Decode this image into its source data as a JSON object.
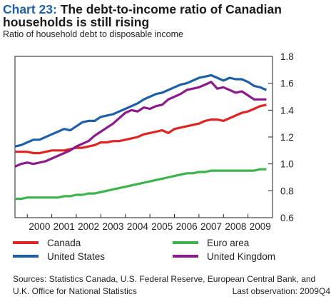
{
  "header": {
    "title_number": "Chart 23:",
    "title_text": "The debt-to-income ratio of Canadian households is still rising",
    "subtitle": "Ratio of household debt to disposable income"
  },
  "footer": {
    "sources": "Sources: Statistics Canada, U.S. Federal Reserve, European Central Bank, and U.K. Office for National Statistics",
    "last_observation": "Last observation: 2009Q4"
  },
  "chart_data": {
    "type": "line",
    "title": "The debt-to-income ratio of Canadian households is still rising",
    "subtitle": "Ratio of household debt to disposable income",
    "xlabel": "",
    "ylabel": "",
    "x_tick_labels": [
      "2000",
      "2001",
      "2002",
      "2003",
      "2004",
      "2005",
      "2006",
      "2007",
      "2008",
      "2009"
    ],
    "y_tick_labels": [
      "0.6",
      "0.8",
      "1.0",
      "1.2",
      "1.4",
      "1.6",
      "1.8"
    ],
    "ylim": [
      0.6,
      1.8
    ],
    "xlim": [
      1999.5,
      2010.0
    ],
    "y_axis_side": "right",
    "grid": false,
    "legend_position": "bottom",
    "series": [
      {
        "name": "Canada",
        "color": "#e02424",
        "x": [
          1999.5,
          1999.75,
          2000.0,
          2000.25,
          2000.5,
          2000.75,
          2001.0,
          2001.25,
          2001.5,
          2001.75,
          2002.0,
          2002.25,
          2002.5,
          2002.75,
          2003.0,
          2003.25,
          2003.5,
          2003.75,
          2004.0,
          2004.25,
          2004.5,
          2004.75,
          2005.0,
          2005.25,
          2005.5,
          2005.75,
          2006.0,
          2006.25,
          2006.5,
          2006.75,
          2007.0,
          2007.25,
          2007.5,
          2007.75,
          2008.0,
          2008.25,
          2008.5,
          2008.75,
          2009.0,
          2009.25,
          2009.5,
          2009.75
        ],
        "y": [
          1.09,
          1.09,
          1.09,
          1.08,
          1.08,
          1.09,
          1.1,
          1.1,
          1.1,
          1.11,
          1.12,
          1.12,
          1.13,
          1.14,
          1.16,
          1.16,
          1.17,
          1.17,
          1.18,
          1.19,
          1.2,
          1.22,
          1.23,
          1.24,
          1.25,
          1.23,
          1.26,
          1.27,
          1.28,
          1.29,
          1.3,
          1.32,
          1.33,
          1.33,
          1.32,
          1.34,
          1.36,
          1.38,
          1.39,
          1.41,
          1.43,
          1.44
        ]
      },
      {
        "name": "United States",
        "color": "#1f5fa6",
        "x": [
          1999.5,
          1999.75,
          2000.0,
          2000.25,
          2000.5,
          2000.75,
          2001.0,
          2001.25,
          2001.5,
          2001.75,
          2002.0,
          2002.25,
          2002.5,
          2002.75,
          2003.0,
          2003.25,
          2003.5,
          2003.75,
          2004.0,
          2004.25,
          2004.5,
          2004.75,
          2005.0,
          2005.25,
          2005.5,
          2005.75,
          2006.0,
          2006.25,
          2006.5,
          2006.75,
          2007.0,
          2007.25,
          2007.5,
          2007.75,
          2008.0,
          2008.25,
          2008.5,
          2008.75,
          2009.0,
          2009.25,
          2009.5,
          2009.75
        ],
        "y": [
          1.13,
          1.14,
          1.16,
          1.18,
          1.18,
          1.2,
          1.22,
          1.24,
          1.26,
          1.25,
          1.28,
          1.31,
          1.32,
          1.32,
          1.35,
          1.36,
          1.37,
          1.39,
          1.41,
          1.43,
          1.45,
          1.48,
          1.5,
          1.52,
          1.53,
          1.55,
          1.57,
          1.59,
          1.6,
          1.62,
          1.64,
          1.65,
          1.66,
          1.64,
          1.62,
          1.64,
          1.63,
          1.63,
          1.61,
          1.58,
          1.57,
          1.55
        ]
      },
      {
        "name": "Euro area",
        "color": "#3cb44b",
        "x": [
          1999.5,
          1999.75,
          2000.0,
          2000.25,
          2000.5,
          2000.75,
          2001.0,
          2001.25,
          2001.5,
          2001.75,
          2002.0,
          2002.25,
          2002.5,
          2002.75,
          2003.0,
          2003.25,
          2003.5,
          2003.75,
          2004.0,
          2004.25,
          2004.5,
          2004.75,
          2005.0,
          2005.25,
          2005.5,
          2005.75,
          2006.0,
          2006.25,
          2006.5,
          2006.75,
          2007.0,
          2007.25,
          2007.5,
          2007.75,
          2008.0,
          2008.25,
          2008.5,
          2008.75,
          2009.0,
          2009.25,
          2009.5,
          2009.75
        ],
        "y": [
          0.74,
          0.74,
          0.75,
          0.75,
          0.75,
          0.75,
          0.75,
          0.75,
          0.76,
          0.76,
          0.77,
          0.77,
          0.78,
          0.78,
          0.79,
          0.8,
          0.81,
          0.82,
          0.83,
          0.84,
          0.85,
          0.86,
          0.87,
          0.88,
          0.89,
          0.9,
          0.91,
          0.92,
          0.93,
          0.93,
          0.94,
          0.94,
          0.95,
          0.95,
          0.95,
          0.95,
          0.95,
          0.95,
          0.95,
          0.95,
          0.96,
          0.96
        ]
      },
      {
        "name": "United Kingdom",
        "color": "#8b1a8b",
        "x": [
          1999.5,
          1999.75,
          2000.0,
          2000.25,
          2000.5,
          2000.75,
          2001.0,
          2001.25,
          2001.5,
          2001.75,
          2002.0,
          2002.25,
          2002.5,
          2002.75,
          2003.0,
          2003.25,
          2003.5,
          2003.75,
          2004.0,
          2004.25,
          2004.5,
          2004.75,
          2005.0,
          2005.25,
          2005.5,
          2005.75,
          2006.0,
          2006.25,
          2006.5,
          2006.75,
          2007.0,
          2007.25,
          2007.5,
          2007.75,
          2008.0,
          2008.25,
          2008.5,
          2008.75,
          2009.0,
          2009.25,
          2009.5,
          2009.75
        ],
        "y": [
          0.98,
          1.0,
          1.01,
          1.0,
          1.01,
          1.02,
          1.04,
          1.06,
          1.08,
          1.1,
          1.13,
          1.15,
          1.17,
          1.21,
          1.24,
          1.27,
          1.3,
          1.34,
          1.38,
          1.4,
          1.39,
          1.42,
          1.41,
          1.43,
          1.44,
          1.48,
          1.5,
          1.52,
          1.55,
          1.56,
          1.57,
          1.59,
          1.61,
          1.56,
          1.57,
          1.55,
          1.53,
          1.54,
          1.51,
          1.48,
          1.48,
          1.48
        ]
      }
    ]
  }
}
